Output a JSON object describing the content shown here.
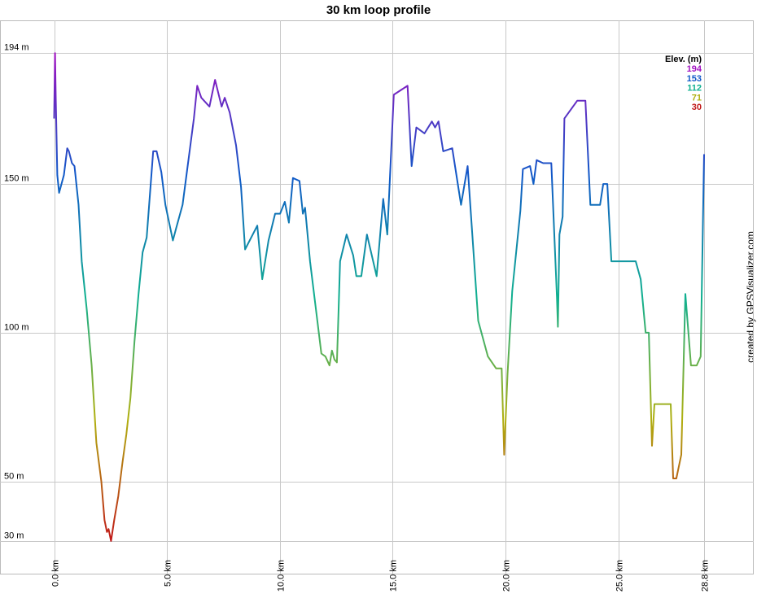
{
  "chart_data": {
    "type": "line",
    "title": "30 km loop profile",
    "credit": "created by GPSVisualizer.com",
    "x": [
      0,
      0.04,
      0.07,
      0.14,
      0.22,
      0.43,
      0.58,
      0.65,
      0.79,
      0.9,
      1.08,
      1.22,
      1.44,
      1.66,
      1.87,
      2.09,
      2.23,
      2.34,
      2.41,
      2.52,
      2.66,
      2.84,
      3.02,
      3.2,
      3.38,
      3.56,
      3.74,
      3.92,
      4.1,
      4.39,
      4.54,
      4.75,
      4.93,
      5.26,
      5.4,
      5.69,
      6.19,
      6.34,
      6.52,
      6.88,
      7.13,
      7.42,
      7.56,
      7.78,
      8.06,
      8.28,
      8.46,
      9.0,
      9.22,
      9.5,
      9.79,
      10.01,
      10.22,
      10.4,
      10.58,
      10.87,
      11.02,
      11.12,
      11.34,
      11.84,
      12.02,
      12.2,
      12.31,
      12.42,
      12.53,
      12.6,
      12.67,
      12.96,
      13.25,
      13.39,
      13.61,
      13.86,
      14.29,
      14.58,
      14.76,
      15.05,
      15.66,
      15.84,
      16.05,
      16.41,
      16.74,
      16.88,
      17.03,
      17.24,
      17.64,
      18.03,
      18.32,
      18.79,
      19.22,
      19.58,
      19.83,
      19.94,
      20.09,
      20.3,
      20.66,
      20.77,
      21.09,
      21.24,
      21.38,
      21.67,
      22.03,
      22.28,
      22.32,
      22.39,
      22.53,
      22.61,
      23.18,
      23.54,
      23.76,
      24.19,
      24.33,
      24.51,
      24.69,
      25.77,
      25.99,
      26.21,
      26.35,
      26.49,
      26.6,
      27.32,
      27.43,
      27.57,
      27.79,
      27.97,
      28.22,
      28.47,
      28.65,
      28.8
    ],
    "values": [
      172,
      194,
      179,
      153,
      147,
      153,
      162,
      161,
      157,
      156,
      143,
      124,
      108,
      89,
      63,
      50,
      37,
      33,
      34,
      30,
      37,
      45,
      56,
      66,
      78,
      97,
      113,
      127,
      132,
      161,
      161,
      154,
      143,
      131,
      135,
      143,
      172,
      183,
      179,
      176,
      185,
      176,
      179,
      174,
      163,
      149,
      128,
      136,
      118,
      131,
      140,
      140,
      144,
      137,
      152,
      151,
      140,
      142,
      124,
      93,
      92,
      89,
      94,
      91,
      90,
      107,
      124,
      133,
      126,
      119,
      119,
      133,
      119,
      145,
      133,
      180,
      183,
      156,
      169,
      167,
      171,
      169,
      171,
      161,
      162,
      143,
      156,
      104,
      92,
      88,
      88,
      59,
      86,
      114,
      141,
      155,
      156,
      150,
      158,
      157,
      157,
      112,
      102,
      133,
      139,
      172,
      178,
      178,
      143,
      143,
      150,
      150,
      124,
      124,
      118,
      100,
      100,
      62,
      76,
      76,
      51,
      51,
      59,
      113,
      89,
      89,
      92,
      160
    ],
    "xlim": [
      -2.4,
      31.0
    ],
    "ylim": [
      19,
      205
    ],
    "xticks": [
      {
        "value": 0,
        "label": "0.0 km"
      },
      {
        "value": 5,
        "label": "5.0 km"
      },
      {
        "value": 10,
        "label": "10.0 km"
      },
      {
        "value": 15,
        "label": "15.0 km"
      },
      {
        "value": 20,
        "label": "20.0 km"
      },
      {
        "value": 25,
        "label": "25.0 km"
      },
      {
        "value": 28.8,
        "label": "28.8 km"
      }
    ],
    "yticks": [
      {
        "value": 30,
        "label": "30 m"
      },
      {
        "value": 50,
        "label": "50 m"
      },
      {
        "value": 100,
        "label": "100 m"
      },
      {
        "value": 150,
        "label": "150 m"
      },
      {
        "value": 194,
        "label": "194 m"
      }
    ],
    "grid": true,
    "legend": {
      "title": "Elev. (m)",
      "position": "top-right",
      "entries": [
        {
          "value": 194,
          "color": "#a010c0"
        },
        {
          "value": 153,
          "color": "#1058c8"
        },
        {
          "value": 112,
          "color": "#10b090"
        },
        {
          "value": 71,
          "color": "#b0b010"
        },
        {
          "value": 30,
          "color": "#c01818"
        }
      ]
    }
  }
}
